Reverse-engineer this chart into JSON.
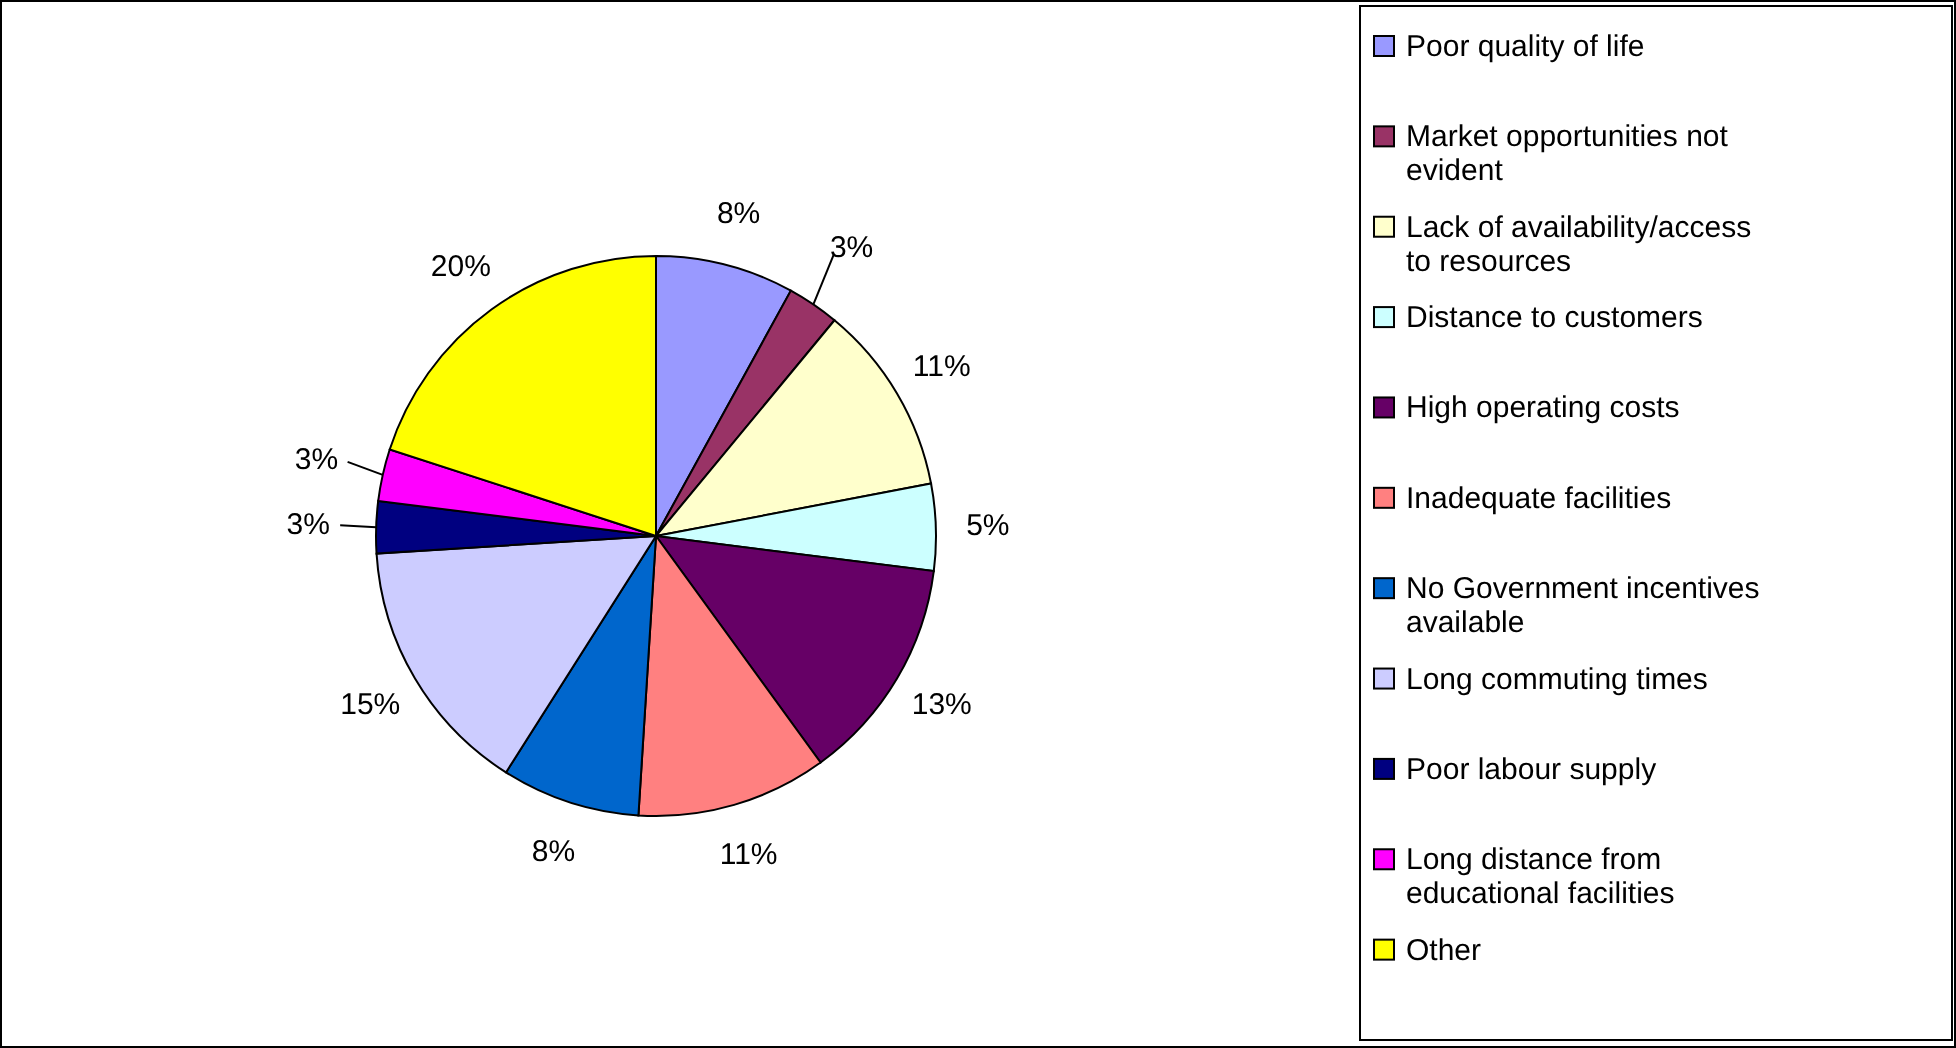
{
  "chart_data": {
    "type": "pie",
    "categories": [
      "Poor quality of life",
      "Market opportunities not evident",
      "Lack of availability/access to resources",
      "Distance to customers",
      "High operating costs",
      "Inadequate facilities",
      "No Government incentives available",
      "Long commuting times",
      "Poor labour supply",
      "Long distance from educational facilities",
      "Other"
    ],
    "values": [
      8,
      3,
      11,
      5,
      13,
      11,
      8,
      15,
      3,
      3,
      20
    ],
    "colors": [
      "#9999ff",
      "#993366",
      "#ffffcc",
      "#ccffff",
      "#660066",
      "#ff8080",
      "#0066cc",
      "#ccccff",
      "#000080",
      "#ff00ff",
      "#ffff00"
    ],
    "value_labels": [
      "8%",
      "3%",
      "11%",
      "5%",
      "13%",
      "11%",
      "8%",
      "15%",
      "3%",
      "3%",
      "20%"
    ],
    "legend": "right"
  }
}
